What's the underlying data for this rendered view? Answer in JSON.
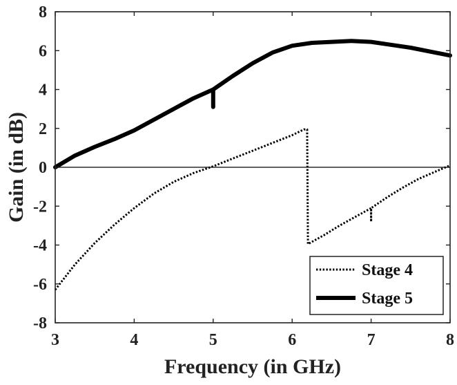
{
  "chart_data": {
    "type": "line",
    "xlabel": "Frequency (in GHz)",
    "ylabel": "Gain (in dB)",
    "xlim": [
      3,
      8
    ],
    "ylim": [
      -8,
      8
    ],
    "xticks": [
      3,
      4,
      5,
      6,
      7,
      8
    ],
    "yticks": [
      -8,
      -6,
      -4,
      -2,
      0,
      2,
      4,
      6,
      8
    ],
    "grid": false,
    "legend_position": "bottom-right",
    "reference_line": 0,
    "colors": {
      "series": "#000000",
      "axes": "#222222",
      "background": "#ffffff"
    },
    "series": [
      {
        "name": "Stage 4",
        "style": "dotted",
        "x": [
          3.0,
          3.25,
          3.5,
          3.75,
          4.0,
          4.25,
          4.5,
          4.75,
          5.0,
          5.25,
          5.5,
          5.75,
          6.0,
          6.15,
          6.19,
          6.2,
          6.4,
          6.6,
          6.8,
          7.0,
          7.0,
          7.0,
          7.2,
          7.4,
          7.6,
          7.8,
          8.0
        ],
        "y": [
          -6.3,
          -5.0,
          -3.9,
          -2.95,
          -2.1,
          -1.35,
          -0.75,
          -0.3,
          0.05,
          0.45,
          0.85,
          1.25,
          1.65,
          1.95,
          1.95,
          -3.95,
          -3.5,
          -3.0,
          -2.55,
          -2.1,
          -2.8,
          -2.1,
          -1.55,
          -1.05,
          -0.6,
          -0.25,
          0.1
        ]
      },
      {
        "name": "Stage 5",
        "style": "solid",
        "x": [
          3.0,
          3.25,
          3.5,
          3.75,
          4.0,
          4.25,
          4.5,
          4.75,
          5.0,
          5.0,
          5.0,
          5.25,
          5.5,
          5.75,
          6.0,
          6.25,
          6.5,
          6.75,
          7.0,
          7.25,
          7.5,
          7.75,
          8.0
        ],
        "y": [
          0.0,
          0.6,
          1.05,
          1.45,
          1.9,
          2.45,
          3.0,
          3.55,
          4.0,
          3.1,
          4.0,
          4.7,
          5.35,
          5.9,
          6.25,
          6.4,
          6.45,
          6.5,
          6.45,
          6.3,
          6.15,
          5.95,
          5.75
        ]
      }
    ]
  }
}
